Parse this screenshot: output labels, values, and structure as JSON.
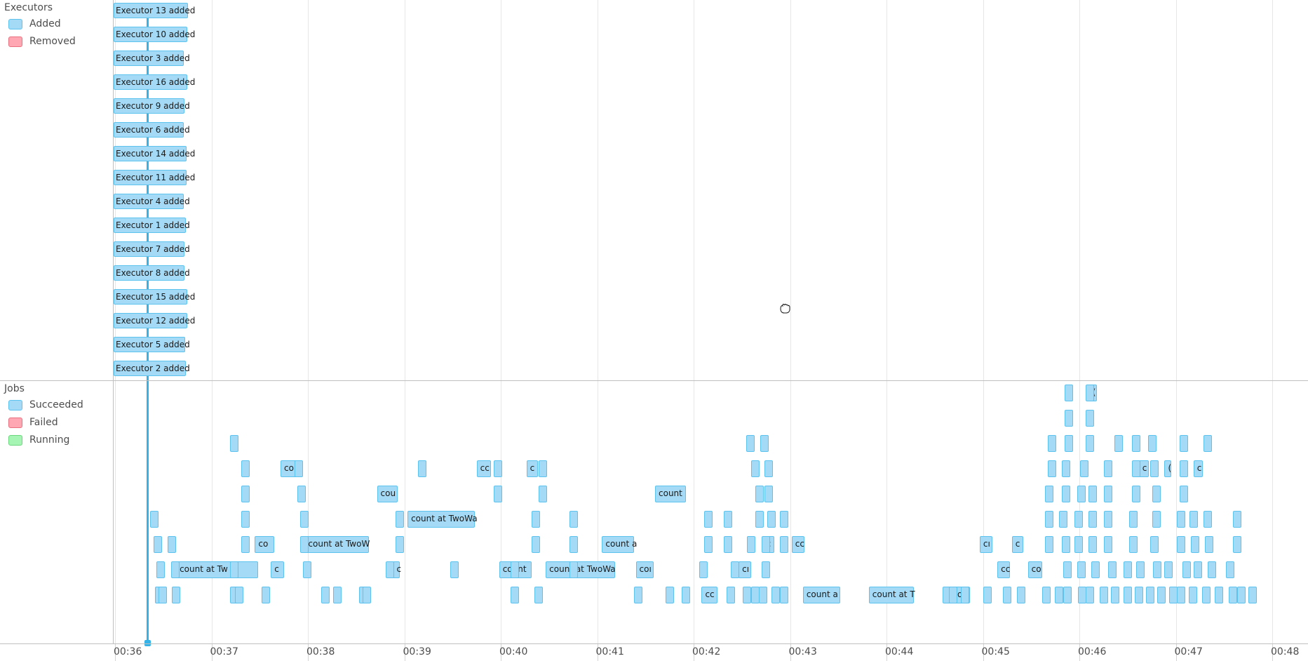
{
  "executors_group": {
    "title": "Executors",
    "legend": [
      {
        "label": "Added",
        "color": "#a4daf6",
        "border": "#5cc3ef"
      },
      {
        "label": "Removed",
        "color": "#ffa8b3",
        "border": "#e8707f"
      }
    ],
    "events": [
      "Executor 13 added",
      "Executor 10 added",
      "Executor 3 added",
      "Executor 16 added",
      "Executor 9 added",
      "Executor 6 added",
      "Executor 14 added",
      "Executor 11 added",
      "Executor 4 added",
      "Executor 1 added",
      "Executor 7 added",
      "Executor 8 added",
      "Executor 15 added",
      "Executor 12 added",
      "Executor 5 added",
      "Executor 2 added"
    ]
  },
  "jobs_group": {
    "title": "Jobs",
    "legend": [
      {
        "label": "Succeeded",
        "color": "#a4daf6",
        "border": "#5cc3ef"
      },
      {
        "label": "Failed",
        "color": "#ffa8b3",
        "border": "#e8707f"
      },
      {
        "label": "Running",
        "color": "#a6f5b4",
        "border": "#6bd67e"
      }
    ],
    "labeled_jobs": [
      {
        "t": "00:36:38",
        "row": 7,
        "dur": 51,
        "label": "count at Tw"
      },
      {
        "t": "00:37:27",
        "row": 6,
        "dur": 12,
        "label": "co"
      },
      {
        "t": "00:37:37",
        "row": 7,
        "dur": 8,
        "label": "c"
      },
      {
        "t": "00:37:43",
        "row": 3,
        "dur": 12,
        "label": "coı"
      },
      {
        "t": "00:37:58",
        "row": 6,
        "dur": 40,
        "label": "count at TwoW"
      },
      {
        "t": "00:38:43",
        "row": 4,
        "dur": 13,
        "label": "cou"
      },
      {
        "t": "00:38:53",
        "row": 7,
        "dur": 4,
        "label": "c"
      },
      {
        "t": "00:39:02",
        "row": 5,
        "dur": 42,
        "label": "count at TwoWa"
      },
      {
        "t": "00:39:45",
        "row": 3,
        "dur": 9,
        "label": "cc"
      },
      {
        "t": "00:39:59",
        "row": 7,
        "dur": 20,
        "label": "count"
      },
      {
        "t": "00:40:16",
        "row": 3,
        "dur": 7,
        "label": "c"
      },
      {
        "t": "00:40:28",
        "row": 7,
        "dur": 43,
        "label": "count at TwoWa"
      },
      {
        "t": "00:41:03",
        "row": 6,
        "dur": 20,
        "label": "count a"
      },
      {
        "t": "00:41:24",
        "row": 7,
        "dur": 11,
        "label": "coı"
      },
      {
        "t": "00:41:36",
        "row": 4,
        "dur": 19,
        "label": "count"
      },
      {
        "t": "00:42:05",
        "row": 8,
        "dur": 10,
        "label": "cc"
      },
      {
        "t": "00:42:28",
        "row": 7,
        "dur": 8,
        "label": "cı"
      },
      {
        "t": "00:42:43",
        "row": 6,
        "dur": 7,
        "label": "c"
      },
      {
        "t": "00:43:01",
        "row": 6,
        "dur": 8,
        "label": "cc"
      },
      {
        "t": "00:43:08",
        "row": 8,
        "dur": 23,
        "label": "count a"
      },
      {
        "t": "00:43:49",
        "row": 8,
        "dur": 28,
        "label": "count at T"
      },
      {
        "t": "00:44:39",
        "row": 8,
        "dur": 13,
        "label": "cou"
      },
      {
        "t": "00:44:58",
        "row": 6,
        "dur": 8,
        "label": "cı"
      },
      {
        "t": "00:45:09",
        "row": 7,
        "dur": 8,
        "label": "cc"
      },
      {
        "t": "00:45:18",
        "row": 6,
        "dur": 7,
        "label": "c"
      },
      {
        "t": "00:45:28",
        "row": 7,
        "dur": 9,
        "label": "co"
      },
      {
        "t": "00:46:06",
        "row": 0,
        "dur": 5,
        "label": "("
      },
      {
        "t": "00:46:37",
        "row": 3,
        "dur": 6,
        "label": "c"
      },
      {
        "t": "00:46:53",
        "row": 3,
        "dur": 4,
        "label": "("
      },
      {
        "t": "00:47:11",
        "row": 3,
        "dur": 6,
        "label": "c"
      }
    ]
  },
  "axis": {
    "ticks": [
      "00:36",
      "00:37",
      "00:38",
      "00:39",
      "00:40",
      "00:41",
      "00:42",
      "00:43",
      "00:44",
      "00:45",
      "00:46",
      "00:47",
      "00:48"
    ]
  },
  "cursor": {
    "icon": "grab-hand-icon"
  }
}
